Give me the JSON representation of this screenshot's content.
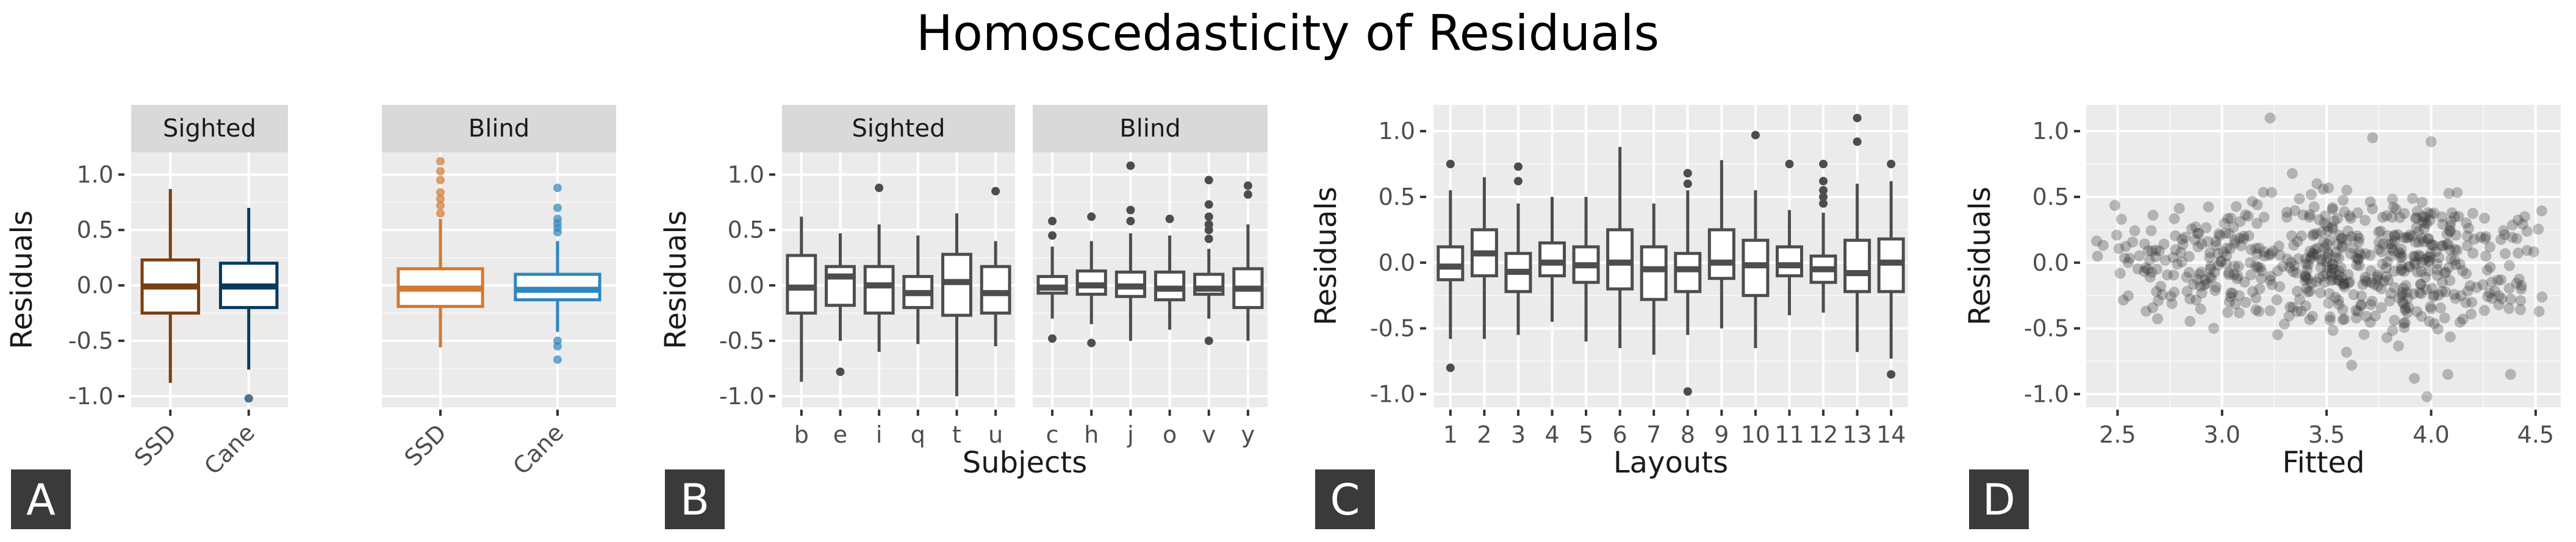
{
  "title": "Homoscedasticity of Residuals",
  "colors": {
    "ssd_sighted": "#7b3f10",
    "cane_sighted": "#083a5e",
    "ssd_blind": "#d2782f",
    "cane_blind": "#2f86bf",
    "neutral": "#4d4d4d"
  },
  "chart_data": [
    {
      "panel_letter": "A",
      "type": "boxplot",
      "ylabel": "Residuals",
      "xlabel": "",
      "ylim": [
        -1.1,
        1.2
      ],
      "yticks": [
        -1.0,
        -0.5,
        0.0,
        0.5,
        1.0
      ],
      "ytick_labels": [
        "-1.0",
        "-0.5",
        "0.0",
        "0.5",
        "1.0"
      ],
      "facets": [
        {
          "label": "Sighted",
          "categories": [
            "SSD",
            "Cane"
          ],
          "boxes": [
            {
              "q1": -0.25,
              "median": -0.01,
              "q3": 0.23,
              "whisker_low": -0.88,
              "whisker_high": 0.87,
              "outliers": [],
              "color_key": "ssd_sighted"
            },
            {
              "q1": -0.2,
              "median": -0.01,
              "q3": 0.2,
              "whisker_low": -0.76,
              "whisker_high": 0.7,
              "outliers": [
                -1.02
              ],
              "color_key": "cane_sighted"
            }
          ]
        },
        {
          "label": "Blind",
          "categories": [
            "SSD",
            "Cane"
          ],
          "boxes": [
            {
              "q1": -0.19,
              "median": -0.03,
              "q3": 0.15,
              "whisker_low": -0.56,
              "whisker_high": 0.6,
              "outliers": [
                0.65,
                0.72,
                0.78,
                0.84,
                0.95,
                1.03,
                1.12
              ],
              "color_key": "ssd_blind"
            },
            {
              "q1": -0.13,
              "median": -0.04,
              "q3": 0.1,
              "whisker_low": -0.42,
              "whisker_high": 0.4,
              "outliers": [
                0.48,
                0.52,
                0.56,
                0.6,
                0.7,
                0.88,
                -0.5,
                -0.55,
                -0.67
              ],
              "color_key": "cane_blind"
            }
          ]
        }
      ]
    },
    {
      "panel_letter": "B",
      "type": "boxplot",
      "ylabel": "Residuals",
      "xlabel": "Subjects",
      "ylim": [
        -1.1,
        1.2
      ],
      "yticks": [
        -1.0,
        -0.5,
        0.0,
        0.5,
        1.0
      ],
      "ytick_labels": [
        "-1.0",
        "-0.5",
        "0.0",
        "0.5",
        "1.0"
      ],
      "facets": [
        {
          "label": "Sighted",
          "categories": [
            "b",
            "e",
            "i",
            "q",
            "t",
            "u"
          ],
          "boxes": [
            {
              "q1": -0.25,
              "median": -0.02,
              "q3": 0.27,
              "whisker_low": -0.87,
              "whisker_high": 0.62,
              "outliers": []
            },
            {
              "q1": -0.18,
              "median": 0.08,
              "q3": 0.17,
              "whisker_low": -0.5,
              "whisker_high": 0.47,
              "outliers": [
                -0.78
              ]
            },
            {
              "q1": -0.25,
              "median": 0.0,
              "q3": 0.17,
              "whisker_low": -0.6,
              "whisker_high": 0.55,
              "outliers": [
                0.88
              ]
            },
            {
              "q1": -0.2,
              "median": -0.07,
              "q3": 0.08,
              "whisker_low": -0.53,
              "whisker_high": 0.45,
              "outliers": []
            },
            {
              "q1": -0.27,
              "median": 0.03,
              "q3": 0.28,
              "whisker_low": -1.0,
              "whisker_high": 0.65,
              "outliers": []
            },
            {
              "q1": -0.25,
              "median": -0.07,
              "q3": 0.17,
              "whisker_low": -0.55,
              "whisker_high": 0.4,
              "outliers": [
                0.85
              ]
            }
          ]
        },
        {
          "label": "Blind",
          "categories": [
            "c",
            "h",
            "j",
            "o",
            "v",
            "y"
          ],
          "boxes": [
            {
              "q1": -0.07,
              "median": -0.02,
              "q3": 0.08,
              "whisker_low": -0.3,
              "whisker_high": 0.35,
              "outliers": [
                0.45,
                0.58,
                -0.48
              ]
            },
            {
              "q1": -0.08,
              "median": 0.0,
              "q3": 0.13,
              "whisker_low": -0.35,
              "whisker_high": 0.4,
              "outliers": [
                0.62,
                -0.52
              ]
            },
            {
              "q1": -0.1,
              "median": -0.01,
              "q3": 0.12,
              "whisker_low": -0.5,
              "whisker_high": 0.47,
              "outliers": [
                0.58,
                0.68,
                1.08
              ]
            },
            {
              "q1": -0.13,
              "median": -0.03,
              "q3": 0.12,
              "whisker_low": -0.4,
              "whisker_high": 0.45,
              "outliers": [
                0.6
              ]
            },
            {
              "q1": -0.08,
              "median": -0.03,
              "q3": 0.1,
              "whisker_low": -0.3,
              "whisker_high": 0.33,
              "outliers": [
                0.42,
                0.5,
                0.55,
                0.62,
                0.73,
                0.95,
                -0.5
              ]
            },
            {
              "q1": -0.2,
              "median": -0.03,
              "q3": 0.15,
              "whisker_low": -0.5,
              "whisker_high": 0.55,
              "outliers": [
                0.82,
                0.9
              ]
            }
          ]
        }
      ]
    },
    {
      "panel_letter": "C",
      "type": "boxplot",
      "ylabel": "Residuals",
      "xlabel": "Layouts",
      "ylim": [
        -1.1,
        1.2
      ],
      "yticks": [
        -1.0,
        -0.5,
        0.0,
        0.5,
        1.0
      ],
      "ytick_labels": [
        "-1.0",
        "-0.5",
        "0.0",
        "0.5",
        "1.0"
      ],
      "facets": [
        {
          "label": "",
          "categories": [
            "1",
            "2",
            "3",
            "4",
            "5",
            "6",
            "7",
            "8",
            "9",
            "10",
            "11",
            "12",
            "13",
            "14"
          ],
          "boxes": [
            {
              "q1": -0.13,
              "median": -0.03,
              "q3": 0.12,
              "whisker_low": -0.58,
              "whisker_high": 0.55,
              "outliers": [
                0.75,
                -0.8
              ]
            },
            {
              "q1": -0.1,
              "median": 0.07,
              "q3": 0.25,
              "whisker_low": -0.58,
              "whisker_high": 0.65,
              "outliers": []
            },
            {
              "q1": -0.22,
              "median": -0.07,
              "q3": 0.07,
              "whisker_low": -0.55,
              "whisker_high": 0.45,
              "outliers": [
                0.62,
                0.73
              ]
            },
            {
              "q1": -0.1,
              "median": 0.0,
              "q3": 0.15,
              "whisker_low": -0.45,
              "whisker_high": 0.5,
              "outliers": []
            },
            {
              "q1": -0.15,
              "median": -0.02,
              "q3": 0.12,
              "whisker_low": -0.6,
              "whisker_high": 0.5,
              "outliers": []
            },
            {
              "q1": -0.2,
              "median": 0.0,
              "q3": 0.25,
              "whisker_low": -0.65,
              "whisker_high": 0.88,
              "outliers": []
            },
            {
              "q1": -0.28,
              "median": -0.05,
              "q3": 0.12,
              "whisker_low": -0.7,
              "whisker_high": 0.45,
              "outliers": []
            },
            {
              "q1": -0.22,
              "median": -0.05,
              "q3": 0.07,
              "whisker_low": -0.55,
              "whisker_high": 0.55,
              "outliers": [
                0.6,
                0.68,
                -0.98
              ]
            },
            {
              "q1": -0.12,
              "median": 0.0,
              "q3": 0.25,
              "whisker_low": -0.5,
              "whisker_high": 0.78,
              "outliers": []
            },
            {
              "q1": -0.25,
              "median": -0.02,
              "q3": 0.17,
              "whisker_low": -0.65,
              "whisker_high": 0.55,
              "outliers": [
                0.97
              ]
            },
            {
              "q1": -0.1,
              "median": -0.02,
              "q3": 0.12,
              "whisker_low": -0.4,
              "whisker_high": 0.4,
              "outliers": [
                0.75
              ]
            },
            {
              "q1": -0.15,
              "median": -0.05,
              "q3": 0.05,
              "whisker_low": -0.38,
              "whisker_high": 0.38,
              "outliers": [
                0.45,
                0.5,
                0.55,
                0.62,
                0.75
              ]
            },
            {
              "q1": -0.22,
              "median": -0.08,
              "q3": 0.17,
              "whisker_low": -0.68,
              "whisker_high": 0.6,
              "outliers": [
                0.92,
                1.1
              ]
            },
            {
              "q1": -0.22,
              "median": 0.0,
              "q3": 0.18,
              "whisker_low": -0.73,
              "whisker_high": 0.62,
              "outliers": [
                0.75,
                -0.85
              ]
            }
          ]
        }
      ]
    },
    {
      "panel_letter": "D",
      "type": "scatter",
      "ylabel": "Residuals",
      "xlabel": "Fitted",
      "xlim": [
        2.35,
        4.62
      ],
      "ylim": [
        -1.1,
        1.2
      ],
      "xticks": [
        2.5,
        3.0,
        3.5,
        4.0,
        4.5
      ],
      "xtick_labels": [
        "2.5",
        "3.0",
        "3.5",
        "4.0",
        "4.5"
      ],
      "yticks": [
        -1.0,
        -0.5,
        0.0,
        0.5,
        1.0
      ],
      "ytick_labels": [
        "-1.0",
        "-0.5",
        "0.0",
        "0.5",
        "1.0"
      ],
      "point_count": 600,
      "point_opacity": 0.3,
      "clusters": [
        {
          "x_center": 2.72,
          "x_spread": 0.18,
          "y_center": -0.02,
          "y_spread": 0.22,
          "n": 80
        },
        {
          "x_center": 3.1,
          "x_spread": 0.14,
          "y_center": 0.0,
          "y_spread": 0.24,
          "n": 100
        },
        {
          "x_center": 3.52,
          "x_spread": 0.14,
          "y_center": -0.02,
          "y_spread": 0.3,
          "n": 180
        },
        {
          "x_center": 3.98,
          "x_spread": 0.15,
          "y_center": 0.0,
          "y_spread": 0.3,
          "n": 200
        },
        {
          "x_center": 4.38,
          "x_spread": 0.1,
          "y_center": -0.05,
          "y_spread": 0.3,
          "n": 40
        }
      ],
      "extreme_points": [
        {
          "x": 3.23,
          "y": 1.1
        },
        {
          "x": 3.72,
          "y": 0.95
        },
        {
          "x": 4.0,
          "y": 0.92
        },
        {
          "x": 3.62,
          "y": -0.78
        },
        {
          "x": 3.92,
          "y": -0.88
        },
        {
          "x": 4.38,
          "y": -0.85
        },
        {
          "x": 4.08,
          "y": -0.85
        },
        {
          "x": 3.98,
          "y": -1.02
        }
      ]
    }
  ]
}
